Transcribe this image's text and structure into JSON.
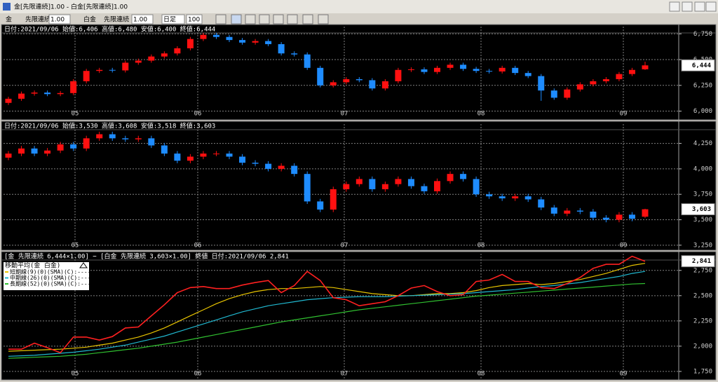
{
  "window": {
    "title": "金[先限連続]1.00 - 白金[先限連続]1.00"
  },
  "toolbar": {
    "items": [
      "金",
      "先限連続",
      "1.00",
      "白金",
      "先限連続",
      "1.00",
      "日足",
      "100"
    ]
  },
  "x_labels": [
    "05",
    "06",
    "07",
    "08",
    "09"
  ],
  "panels": [
    {
      "header": "日付:2021/09/06 始値:6,406 高値:6,480 安値:6,400 終値:6,444",
      "ylim": [
        5990,
        6820
      ],
      "yticks": [
        {
          "value": 6000,
          "label": "6,000"
        },
        {
          "value": 6250,
          "label": "6,250"
        },
        {
          "value": 6500,
          "label": "6,500"
        },
        {
          "value": 6750,
          "label": "6,750"
        }
      ],
      "last_label": "6,444",
      "candles": [
        [
          6080,
          6140,
          6060,
          6120
        ],
        [
          6120,
          6190,
          6100,
          6170
        ],
        [
          6170,
          6200,
          6150,
          6180
        ],
        [
          6180,
          6200,
          6145,
          6165
        ],
        [
          6165,
          6195,
          6145,
          6175
        ],
        [
          6175,
          6310,
          6155,
          6290
        ],
        [
          6290,
          6410,
          6270,
          6390
        ],
        [
          6390,
          6420,
          6370,
          6400
        ],
        [
          6400,
          6420,
          6375,
          6395
        ],
        [
          6395,
          6490,
          6375,
          6470
        ],
        [
          6470,
          6510,
          6450,
          6490
        ],
        [
          6490,
          6550,
          6470,
          6530
        ],
        [
          6530,
          6580,
          6510,
          6560
        ],
        [
          6560,
          6630,
          6540,
          6610
        ],
        [
          6610,
          6720,
          6590,
          6700
        ],
        [
          6700,
          6760,
          6680,
          6740
        ],
        [
          6740,
          6760,
          6700,
          6720
        ],
        [
          6720,
          6740,
          6670,
          6690
        ],
        [
          6690,
          6710,
          6645,
          6665
        ],
        [
          6665,
          6700,
          6645,
          6680
        ],
        [
          6680,
          6700,
          6630,
          6650
        ],
        [
          6650,
          6670,
          6540,
          6560
        ],
        [
          6560,
          6580,
          6530,
          6550
        ],
        [
          6550,
          6570,
          6400,
          6420
        ],
        [
          6420,
          6440,
          6230,
          6250
        ],
        [
          6250,
          6300,
          6230,
          6280
        ],
        [
          6280,
          6330,
          6260,
          6310
        ],
        [
          6310,
          6330,
          6280,
          6300
        ],
        [
          6300,
          6320,
          6200,
          6220
        ],
        [
          6220,
          6310,
          6200,
          6290
        ],
        [
          6290,
          6420,
          6270,
          6400
        ],
        [
          6400,
          6425,
          6380,
          6405
        ],
        [
          6405,
          6425,
          6360,
          6380
        ],
        [
          6380,
          6440,
          6360,
          6420
        ],
        [
          6420,
          6470,
          6400,
          6450
        ],
        [
          6450,
          6470,
          6390,
          6410
        ],
        [
          6410,
          6430,
          6370,
          6390
        ],
        [
          6390,
          6410,
          6365,
          6385
        ],
        [
          6385,
          6440,
          6365,
          6420
        ],
        [
          6420,
          6440,
          6350,
          6370
        ],
        [
          6370,
          6390,
          6320,
          6340
        ],
        [
          6340,
          6360,
          6100,
          6200
        ],
        [
          6200,
          6220,
          6110,
          6130
        ],
        [
          6130,
          6230,
          6110,
          6210
        ],
        [
          6210,
          6280,
          6190,
          6260
        ],
        [
          6260,
          6310,
          6240,
          6290
        ],
        [
          6290,
          6330,
          6270,
          6310
        ],
        [
          6310,
          6380,
          6290,
          6360
        ],
        [
          6360,
          6420,
          6340,
          6400
        ],
        [
          6406,
          6480,
          6400,
          6444
        ]
      ]
    },
    {
      "header": "日付:2021/09/06 始値:3,530 高値:3,608 安値:3,518 終値:3,603",
      "ylim": [
        3235,
        4440
      ],
      "yticks": [
        {
          "value": 3250,
          "label": "3,250"
        },
        {
          "value": 3500,
          "label": "3,500"
        },
        {
          "value": 3750,
          "label": "3,750"
        },
        {
          "value": 4000,
          "label": "4,000"
        },
        {
          "value": 4250,
          "label": "4,250"
        }
      ],
      "last_label": "3,603",
      "candles": [
        [
          4110,
          4175,
          4085,
          4150
        ],
        [
          4150,
          4225,
          4125,
          4200
        ],
        [
          4200,
          4225,
          4125,
          4150
        ],
        [
          4150,
          4205,
          4125,
          4180
        ],
        [
          4180,
          4265,
          4155,
          4240
        ],
        [
          4240,
          4265,
          4175,
          4200
        ],
        [
          4200,
          4325,
          4175,
          4300
        ],
        [
          4300,
          4365,
          4275,
          4340
        ],
        [
          4340,
          4365,
          4275,
          4300
        ],
        [
          4300,
          4325,
          4265,
          4290
        ],
        [
          4290,
          4325,
          4265,
          4300
        ],
        [
          4300,
          4325,
          4205,
          4230
        ],
        [
          4230,
          4255,
          4125,
          4150
        ],
        [
          4150,
          4175,
          4055,
          4080
        ],
        [
          4080,
          4145,
          4055,
          4120
        ],
        [
          4120,
          4175,
          4095,
          4150
        ],
        [
          4150,
          4175,
          4125,
          4150
        ],
        [
          4150,
          4175,
          4095,
          4120
        ],
        [
          4120,
          4145,
          4035,
          4060
        ],
        [
          4060,
          4085,
          4025,
          4050
        ],
        [
          4050,
          4075,
          3975,
          4000
        ],
        [
          4000,
          4055,
          3975,
          4030
        ],
        [
          4030,
          4055,
          3925,
          3950
        ],
        [
          3950,
          3975,
          3655,
          3680
        ],
        [
          3680,
          3705,
          3575,
          3600
        ],
        [
          3600,
          3825,
          3575,
          3800
        ],
        [
          3800,
          3875,
          3775,
          3850
        ],
        [
          3850,
          3925,
          3825,
          3900
        ],
        [
          3900,
          3925,
          3775,
          3800
        ],
        [
          3800,
          3875,
          3775,
          3850
        ],
        [
          3850,
          3925,
          3825,
          3900
        ],
        [
          3900,
          3925,
          3805,
          3830
        ],
        [
          3830,
          3855,
          3755,
          3780
        ],
        [
          3780,
          3905,
          3755,
          3880
        ],
        [
          3880,
          3975,
          3855,
          3950
        ],
        [
          3950,
          3975,
          3875,
          3900
        ],
        [
          3900,
          3925,
          3725,
          3750
        ],
        [
          3750,
          3775,
          3705,
          3730
        ],
        [
          3730,
          3755,
          3685,
          3710
        ],
        [
          3710,
          3755,
          3685,
          3730
        ],
        [
          3730,
          3755,
          3675,
          3700
        ],
        [
          3700,
          3725,
          3595,
          3620
        ],
        [
          3620,
          3645,
          3535,
          3560
        ],
        [
          3560,
          3615,
          3535,
          3590
        ],
        [
          3590,
          3615,
          3555,
          3580
        ],
        [
          3580,
          3605,
          3495,
          3520
        ],
        [
          3520,
          3545,
          3475,
          3500
        ],
        [
          3500,
          3575,
          3475,
          3550
        ],
        [
          3550,
          3575,
          3485,
          3510
        ],
        [
          3530,
          3608,
          3518,
          3603
        ]
      ]
    },
    {
      "header": "[金 先限連続 6,444×1.00] − [白金 先限連続 3,603×1.00] 終値 日付:2021/09/06 2,841",
      "legend_title": "移動平均(金 白金)",
      "ylim": [
        1680,
        2915
      ],
      "yticks": [
        {
          "value": 1750,
          "label": "1,750"
        },
        {
          "value": 2000,
          "label": "2,000"
        },
        {
          "value": 2250,
          "label": "2,250"
        },
        {
          "value": 2500,
          "label": "2,500"
        },
        {
          "value": 2750,
          "label": "2,750"
        }
      ],
      "last_label": "2,841",
      "color": "#ff2020",
      "values": [
        1970,
        1970,
        2030,
        1985,
        1935,
        2090,
        2090,
        2060,
        2095,
        2180,
        2190,
        2300,
        2410,
        2530,
        2580,
        2590,
        2570,
        2570,
        2605,
        2630,
        2650,
        2530,
        2600,
        2740,
        2650,
        2480,
        2460,
        2400,
        2420,
        2440,
        2500,
        2575,
        2600,
        2540,
        2500,
        2510,
        2640,
        2655,
        2710,
        2640,
        2640,
        2580,
        2570,
        2620,
        2680,
        2770,
        2810,
        2810,
        2890,
        2841
      ],
      "series": [
        {
          "name": "短期線(9)(0)(SMA)(C):----",
          "color": "#e8c400",
          "values": [
            1950,
            1955,
            1960,
            1965,
            1970,
            1980,
            1990,
            2010,
            2030,
            2060,
            2090,
            2130,
            2180,
            2240,
            2300,
            2360,
            2420,
            2470,
            2510,
            2540,
            2560,
            2570,
            2570,
            2580,
            2590,
            2580,
            2560,
            2540,
            2520,
            2510,
            2500,
            2500,
            2510,
            2520,
            2520,
            2530,
            2550,
            2580,
            2600,
            2610,
            2620,
            2610,
            2620,
            2640,
            2660,
            2690,
            2720,
            2760,
            2800,
            2820
          ]
        },
        {
          "name": "中期線(26)(0)(SMA)(C):----",
          "color": "#20b8d0",
          "values": [
            1900,
            1905,
            1910,
            1920,
            1930,
            1940,
            1955,
            1970,
            1990,
            2010,
            2040,
            2070,
            2100,
            2140,
            2180,
            2220,
            2260,
            2300,
            2340,
            2370,
            2400,
            2420,
            2440,
            2460,
            2470,
            2480,
            2485,
            2490,
            2490,
            2490,
            2495,
            2500,
            2505,
            2510,
            2515,
            2520,
            2530,
            2540,
            2550,
            2560,
            2575,
            2590,
            2600,
            2615,
            2630,
            2650,
            2670,
            2690,
            2720,
            2740
          ]
        },
        {
          "name": "長期線(52)(0)(SMA)(C):----",
          "color": "#30c030",
          "values": [
            1880,
            1885,
            1890,
            1895,
            1900,
            1910,
            1920,
            1935,
            1950,
            1965,
            1980,
            2000,
            2020,
            2040,
            2065,
            2090,
            2115,
            2140,
            2165,
            2190,
            2215,
            2240,
            2260,
            2280,
            2300,
            2320,
            2340,
            2360,
            2375,
            2390,
            2405,
            2420,
            2435,
            2450,
            2465,
            2480,
            2495,
            2505,
            2515,
            2525,
            2535,
            2545,
            2555,
            2565,
            2575,
            2585,
            2595,
            2605,
            2615,
            2620
          ]
        }
      ]
    }
  ]
}
